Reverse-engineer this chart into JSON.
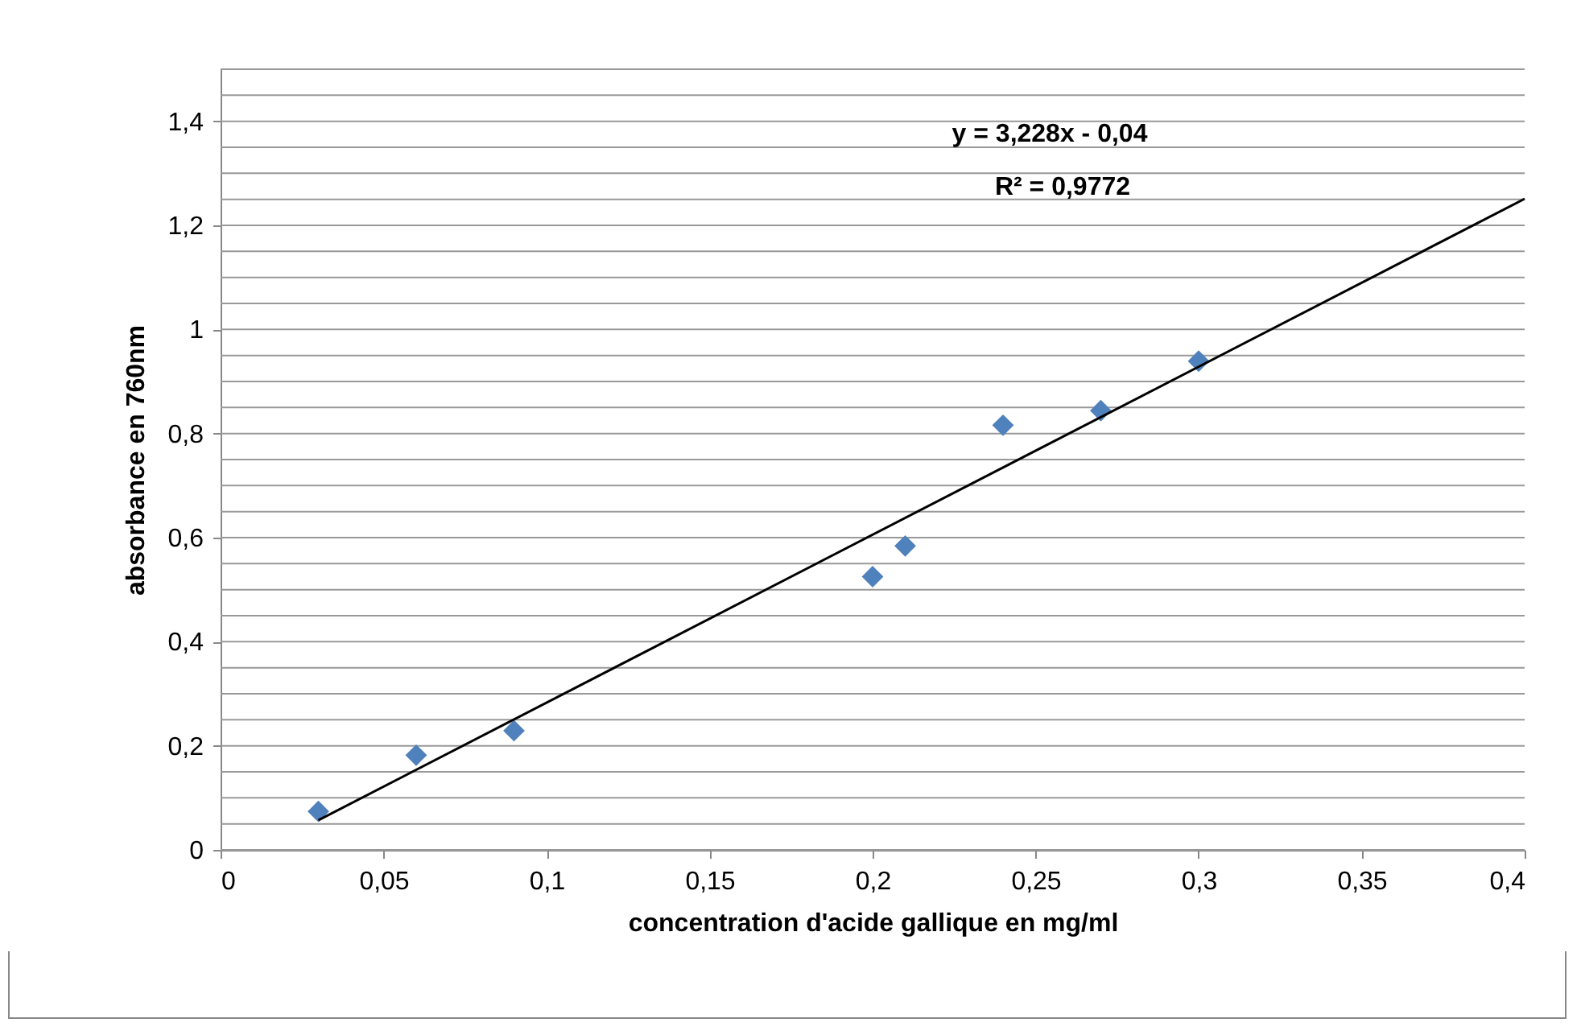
{
  "chart_data": {
    "type": "scatter",
    "xlabel": "concentration d'acide gallique en mg/ml",
    "ylabel": "absorbance  en 760nm",
    "annotations": [
      "y = 3,228x - 0,04",
      "R² = 0,9772"
    ],
    "series": [
      {
        "color": "#4f81bd",
        "marker": "diamond",
        "x": [
          0.03,
          0.06,
          0.09,
          0.2,
          0.21,
          0.24,
          0.27,
          0.3
        ],
        "values": [
          0.074,
          0.182,
          0.229,
          0.525,
          0.584,
          0.816,
          0.844,
          0.939
        ]
      },
      {
        "type": "line",
        "color": "#000000",
        "x": [
          0.03,
          0.4
        ],
        "values": [
          0.057,
          1.251
        ]
      }
    ],
    "xlim": [
      0,
      0.4
    ],
    "xticks": [
      0,
      {
        "value": 0.05,
        "label": "0,05"
      },
      {
        "value": 0.1,
        "label": "0,1"
      },
      {
        "value": 0.15,
        "label": "0,15"
      },
      {
        "value": 0.2,
        "label": "0,2"
      },
      {
        "value": 0.25,
        "label": "0,25"
      },
      {
        "value": 0.3,
        "label": "0,3"
      },
      {
        "value": 0.35,
        "label": "0,35"
      },
      {
        "value": 0.4,
        "label": "0,4"
      }
    ],
    "ylim": [
      0,
      1.5
    ],
    "yticks": [
      0,
      {
        "value": 0.05,
        "label": null
      },
      {
        "value": 0.1,
        "label": null
      },
      {
        "value": 0.15,
        "label": null
      },
      {
        "value": 0.2,
        "label": "0,2"
      },
      {
        "value": 0.25,
        "label": null
      },
      {
        "value": 0.3,
        "label": null
      },
      {
        "value": 0.35,
        "label": null
      },
      {
        "value": 0.4,
        "label": "0,4"
      },
      {
        "value": 0.45,
        "label": null
      },
      {
        "value": 0.5,
        "label": null
      },
      {
        "value": 0.55,
        "label": null
      },
      {
        "value": 0.6,
        "label": "0,6"
      },
      {
        "value": 0.65,
        "label": null
      },
      {
        "value": 0.7,
        "label": null
      },
      {
        "value": 0.75,
        "label": null
      },
      {
        "value": 0.8,
        "label": "0,8"
      },
      {
        "value": 0.85,
        "label": null
      },
      {
        "value": 0.9,
        "label": null
      },
      {
        "value": 0.95,
        "label": null
      },
      1,
      {
        "value": 1.05,
        "label": null
      },
      {
        "value": 1.1,
        "label": null
      },
      {
        "value": 1.15,
        "label": null
      },
      {
        "value": 1.2,
        "label": "1,2"
      },
      {
        "value": 1.25,
        "label": null
      },
      {
        "value": 1.3,
        "label": null
      },
      {
        "value": 1.35,
        "label": null
      },
      {
        "value": 1.4,
        "label": "1,4"
      },
      {
        "value": 1.45,
        "label": null
      },
      {
        "value": 1.5,
        "label": null
      }
    ],
    "grid": "y"
  }
}
